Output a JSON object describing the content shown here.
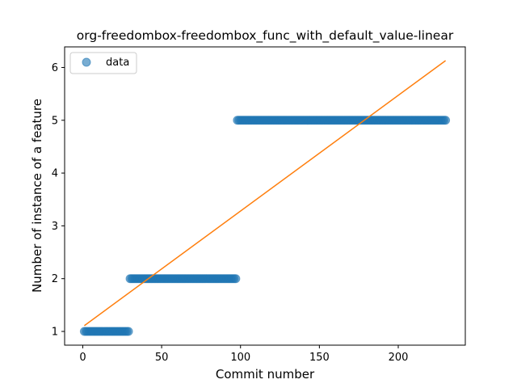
{
  "chart_data": {
    "type": "scatter",
    "title": "org-freedombox-freedombox_func_with_default_value-linear",
    "xlabel": "Commit number",
    "ylabel": "Number of instance of a feature",
    "xlim": [
      -11.5,
      242.5
    ],
    "ylim": [
      0.74,
      6.39
    ],
    "xticks": [
      0,
      50,
      100,
      150,
      200
    ],
    "yticks": [
      1,
      2,
      3,
      4,
      5,
      6
    ],
    "legend": {
      "position": "top-left",
      "entries": [
        "data"
      ]
    },
    "grid": false,
    "series": [
      {
        "name": "data",
        "kind": "points",
        "color": "#1f77b4",
        "segments": [
          {
            "x_start": 1,
            "x_end": 29,
            "y": 1
          },
          {
            "x_start": 30,
            "x_end": 97,
            "y": 2
          },
          {
            "x_start": 98,
            "x_end": 230,
            "y": 5
          }
        ]
      },
      {
        "kind": "fit-line",
        "color": "#ff7f0e",
        "x": [
          1,
          230
        ],
        "y": [
          1.11,
          6.13
        ]
      }
    ]
  }
}
